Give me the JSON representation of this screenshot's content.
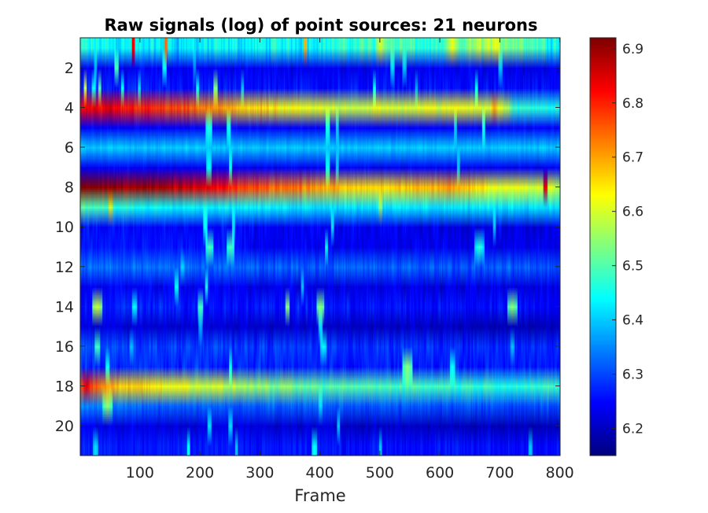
{
  "chart_data": {
    "type": "heatmap",
    "title": "Raw signals (log) of point sources: 21 neurons",
    "xlabel": "Frame",
    "ylabel": "",
    "xlim": [
      1,
      800
    ],
    "ylim": [
      0.5,
      21.5
    ],
    "x_ticks": [
      100,
      200,
      300,
      400,
      500,
      600,
      700,
      800
    ],
    "x_tick_labels": [
      "100",
      "200",
      "300",
      "400",
      "500",
      "600",
      "700",
      "800"
    ],
    "y_ticks": [
      2,
      4,
      6,
      8,
      10,
      12,
      14,
      16,
      18,
      20
    ],
    "y_tick_labels": [
      "2",
      "4",
      "6",
      "8",
      "10",
      "12",
      "14",
      "16",
      "18",
      "20"
    ],
    "colormap": "jet",
    "clim": [
      6.15,
      6.92
    ],
    "colorbar_ticks": [
      6.2,
      6.3,
      6.4,
      6.5,
      6.6,
      6.7,
      6.8,
      6.9
    ],
    "colorbar_tick_labels": [
      "6.2",
      "6.3",
      "6.4",
      "6.5",
      "6.6",
      "6.7",
      "6.8",
      "6.9"
    ],
    "frames": 800,
    "rows": [
      {
        "neuron": 1,
        "base": [
          [
            0,
            6.45
          ],
          [
            150,
            6.42
          ],
          [
            400,
            6.45
          ],
          [
            520,
            6.5
          ],
          [
            600,
            6.45
          ],
          [
            680,
            6.58
          ],
          [
            800,
            6.45
          ]
        ],
        "noise": 0.08,
        "events": [
          [
            88,
            6.85,
            2
          ],
          [
            142,
            6.75,
            2
          ],
          [
            375,
            6.7,
            2
          ],
          [
            500,
            6.6,
            8
          ],
          [
            620,
            6.62,
            20
          ]
        ]
      },
      {
        "neuron": 2,
        "base": [
          [
            0,
            6.24
          ],
          [
            800,
            6.23
          ]
        ],
        "noise": 0.04,
        "events": [
          [
            25,
            6.38,
            2
          ],
          [
            60,
            6.5,
            3
          ],
          [
            140,
            6.45,
            3
          ],
          [
            190,
            6.35,
            2
          ],
          [
            520,
            6.42,
            3
          ],
          [
            540,
            6.4,
            3
          ],
          [
            700,
            6.4,
            3
          ]
        ]
      },
      {
        "neuron": 3,
        "base": [
          [
            0,
            6.27
          ],
          [
            250,
            6.26
          ],
          [
            800,
            6.25
          ]
        ],
        "noise": 0.05,
        "events": [
          [
            8,
            6.6,
            2
          ],
          [
            22,
            6.45,
            3
          ],
          [
            32,
            6.5,
            2
          ],
          [
            70,
            6.45,
            2
          ],
          [
            98,
            6.42,
            2
          ],
          [
            195,
            6.45,
            2
          ],
          [
            225,
            6.55,
            3
          ],
          [
            270,
            6.4,
            2
          ],
          [
            490,
            6.45,
            2
          ],
          [
            560,
            6.38,
            2
          ],
          [
            660,
            6.45,
            2
          ]
        ]
      },
      {
        "neuron": 4,
        "base": [
          [
            0,
            6.83
          ],
          [
            100,
            6.8
          ],
          [
            180,
            6.75
          ],
          [
            260,
            6.68
          ],
          [
            330,
            6.63
          ],
          [
            400,
            6.6
          ],
          [
            520,
            6.6
          ],
          [
            640,
            6.62
          ],
          [
            710,
            6.6
          ],
          [
            720,
            6.47
          ],
          [
            800,
            6.47
          ]
        ],
        "noise": 0.05,
        "events": [
          [
            50,
            6.87,
            10
          ],
          [
            690,
            6.7,
            5
          ]
        ]
      },
      {
        "neuron": 5,
        "base": [
          [
            0,
            6.24
          ],
          [
            800,
            6.24
          ]
        ],
        "noise": 0.03,
        "events": [
          [
            214,
            6.47,
            5
          ],
          [
            247,
            6.45,
            3
          ],
          [
            412,
            6.46,
            3
          ],
          [
            428,
            6.4,
            2
          ],
          [
            625,
            6.4,
            2
          ],
          [
            672,
            6.45,
            2
          ]
        ]
      },
      {
        "neuron": 6,
        "base": [
          [
            0,
            6.4
          ],
          [
            800,
            6.4
          ]
        ],
        "noise": 0.03,
        "events": []
      },
      {
        "neuron": 7,
        "base": [
          [
            0,
            6.24
          ],
          [
            800,
            6.24
          ]
        ],
        "noise": 0.03,
        "events": [
          [
            214,
            6.45,
            4
          ],
          [
            250,
            6.45,
            2
          ],
          [
            412,
            6.45,
            3
          ],
          [
            428,
            6.4,
            2
          ],
          [
            630,
            6.4,
            2
          ]
        ]
      },
      {
        "neuron": 8,
        "base": [
          [
            0,
            6.92
          ],
          [
            100,
            6.9
          ],
          [
            200,
            6.85
          ],
          [
            280,
            6.77
          ],
          [
            380,
            6.73
          ],
          [
            440,
            6.67
          ],
          [
            540,
            6.66
          ],
          [
            620,
            6.7
          ],
          [
            700,
            6.62
          ],
          [
            800,
            6.58
          ]
        ],
        "noise": 0.05,
        "events": [
          [
            775,
            6.85,
            3
          ]
        ]
      },
      {
        "neuron": 9,
        "base": [
          [
            0,
            6.5
          ],
          [
            100,
            6.45
          ],
          [
            400,
            6.42
          ],
          [
            800,
            6.42
          ]
        ],
        "noise": 0.04,
        "events": [
          [
            50,
            6.6,
            3
          ],
          [
            500,
            6.55,
            3
          ]
        ]
      },
      {
        "neuron": 10,
        "base": [
          [
            0,
            6.25
          ],
          [
            800,
            6.22
          ]
        ],
        "noise": 0.05,
        "events": [
          [
            208,
            6.45,
            3
          ],
          [
            255,
            6.42,
            2
          ],
          [
            420,
            6.42,
            2
          ],
          [
            690,
            6.4,
            2
          ]
        ]
      },
      {
        "neuron": 11,
        "base": [
          [
            0,
            6.26
          ],
          [
            200,
            6.26
          ],
          [
            300,
            6.24
          ],
          [
            800,
            6.23
          ]
        ],
        "noise": 0.04,
        "events": [
          [
            215,
            6.5,
            6
          ],
          [
            250,
            6.5,
            6
          ],
          [
            410,
            6.45,
            2
          ],
          [
            665,
            6.48,
            8
          ]
        ]
      },
      {
        "neuron": 12,
        "base": [
          [
            0,
            6.33
          ],
          [
            800,
            6.31
          ]
        ],
        "noise": 0.05,
        "events": [
          [
            170,
            6.42,
            3
          ]
        ]
      },
      {
        "neuron": 13,
        "base": [
          [
            0,
            6.24
          ],
          [
            800,
            6.22
          ]
        ],
        "noise": 0.05,
        "events": [
          [
            160,
            6.45,
            3
          ],
          [
            210,
            6.45,
            2
          ],
          [
            370,
            6.4,
            2
          ]
        ]
      },
      {
        "neuron": 14,
        "base": [
          [
            0,
            6.27
          ],
          [
            800,
            6.25
          ]
        ],
        "noise": 0.05,
        "events": [
          [
            28,
            6.6,
            8
          ],
          [
            90,
            6.45,
            4
          ],
          [
            200,
            6.5,
            4
          ],
          [
            345,
            6.55,
            3
          ],
          [
            400,
            6.55,
            6
          ],
          [
            720,
            6.55,
            8
          ]
        ]
      },
      {
        "neuron": 15,
        "base": [
          [
            0,
            6.22
          ],
          [
            800,
            6.19
          ]
        ],
        "noise": 0.04,
        "events": [
          [
            200,
            6.38,
            3
          ],
          [
            400,
            6.42,
            3
          ]
        ]
      },
      {
        "neuron": 16,
        "base": [
          [
            0,
            6.3
          ],
          [
            800,
            6.27
          ]
        ],
        "noise": 0.05,
        "events": [
          [
            28,
            6.5,
            4
          ],
          [
            85,
            6.4,
            3
          ],
          [
            405,
            6.45,
            5
          ],
          [
            720,
            6.4,
            3
          ]
        ]
      },
      {
        "neuron": 17,
        "base": [
          [
            0,
            6.28
          ],
          [
            300,
            6.27
          ],
          [
            800,
            6.26
          ]
        ],
        "noise": 0.05,
        "events": [
          [
            45,
            6.45,
            3
          ],
          [
            250,
            6.45,
            2
          ],
          [
            545,
            6.55,
            8
          ],
          [
            620,
            6.45,
            4
          ]
        ]
      },
      {
        "neuron": 18,
        "base": [
          [
            0,
            6.8
          ],
          [
            60,
            6.68
          ],
          [
            150,
            6.63
          ],
          [
            300,
            6.55
          ],
          [
            400,
            6.5
          ],
          [
            500,
            6.5
          ],
          [
            650,
            6.48
          ],
          [
            800,
            6.47
          ]
        ],
        "noise": 0.05,
        "events": [
          [
            10,
            6.85,
            5
          ]
        ]
      },
      {
        "neuron": 19,
        "base": [
          [
            0,
            6.35
          ],
          [
            120,
            6.32
          ],
          [
            800,
            6.3
          ]
        ],
        "noise": 0.04,
        "events": [
          [
            45,
            6.55,
            8
          ],
          [
            400,
            6.42,
            3
          ]
        ]
      },
      {
        "neuron": 20,
        "base": [
          [
            0,
            6.23
          ],
          [
            400,
            6.21
          ],
          [
            800,
            6.19
          ]
        ],
        "noise": 0.04,
        "events": [
          [
            215,
            6.42,
            3
          ],
          [
            250,
            6.42,
            3
          ],
          [
            430,
            6.4,
            2
          ]
        ]
      },
      {
        "neuron": 21,
        "base": [
          [
            0,
            6.27
          ],
          [
            800,
            6.25
          ]
        ],
        "noise": 0.04,
        "events": [
          [
            25,
            6.42,
            4
          ],
          [
            180,
            6.45,
            2
          ],
          [
            260,
            6.4,
            2
          ],
          [
            390,
            6.45,
            4
          ],
          [
            500,
            6.4,
            2
          ],
          [
            750,
            6.4,
            3
          ]
        ]
      }
    ]
  }
}
